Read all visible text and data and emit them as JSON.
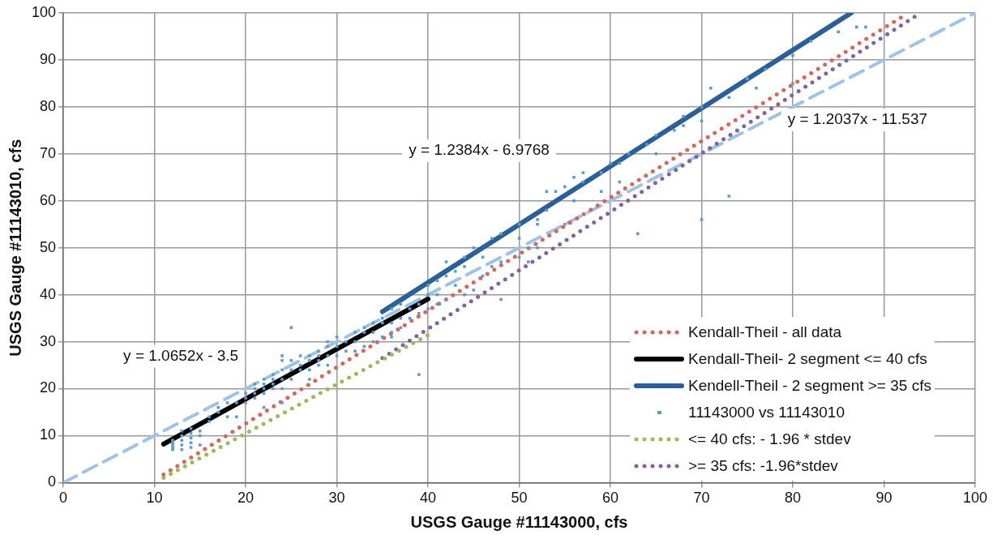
{
  "chart_data": {
    "type": "scatter",
    "xlabel": "USGS Gauge #11143000, cfs",
    "ylabel": "USGS Gauge #11143010, cfs",
    "xlim": [
      0,
      100
    ],
    "ylim": [
      0,
      100
    ],
    "xticks": [
      0,
      10,
      20,
      30,
      40,
      50,
      60,
      70,
      80,
      90,
      100
    ],
    "yticks": [
      0,
      10,
      20,
      30,
      40,
      50,
      60,
      70,
      80,
      90,
      100
    ],
    "grid": true,
    "legend": "bottom right",
    "series": [
      {
        "name": "Kendall-Theil - all data",
        "type": "line",
        "color": "#d9655b",
        "line_style": "dotted",
        "marker": "none",
        "x": [
          11,
          92
        ],
        "values": [
          1.7,
          99.2
        ]
      },
      {
        "name": "Kendall-Theil- 2 segment <= 40 cfs",
        "type": "line",
        "color": "#000000",
        "line_style": "solid",
        "marker": "none",
        "x": [
          11,
          40
        ],
        "values": [
          8.2,
          39.1
        ]
      },
      {
        "name": "Kendell-Theil - 2 segment >= 35 cfs",
        "type": "line",
        "color": "#2a6099",
        "line_style": "solid",
        "marker": "none",
        "x": [
          35,
          86.4
        ],
        "values": [
          36.4,
          100
        ]
      },
      {
        "name": "11143000 vs 11143010",
        "type": "scatter",
        "color": "#5b9bd5",
        "marker": "square",
        "x": [
          12,
          12,
          12,
          12,
          12,
          13,
          13,
          13,
          13,
          13,
          14,
          14,
          14,
          14,
          14,
          15,
          15,
          15,
          16,
          16,
          17,
          17,
          18,
          18,
          19,
          19,
          20,
          20,
          20,
          21,
          21,
          21,
          21,
          22,
          22,
          22,
          22,
          22,
          23,
          23,
          23,
          23,
          24,
          24,
          24,
          24,
          24,
          24,
          25,
          25,
          25,
          25,
          26,
          26,
          26,
          27,
          27,
          27,
          27,
          28,
          28,
          28,
          28,
          29,
          29,
          29,
          29,
          30,
          30,
          30,
          31,
          31,
          32,
          32,
          32,
          33,
          33,
          33,
          34,
          34,
          34,
          35,
          35,
          35,
          36,
          36,
          36,
          36,
          37,
          37,
          37,
          38,
          38,
          39,
          39,
          39,
          40,
          40,
          40,
          41,
          41,
          41,
          42,
          42,
          42,
          43,
          43,
          44,
          44,
          44,
          45,
          45,
          46,
          46,
          47,
          47,
          48,
          48,
          48,
          50,
          50,
          50,
          51,
          51,
          52,
          52,
          52,
          53,
          53,
          54,
          55,
          55,
          56,
          56,
          57,
          57,
          59,
          59,
          60,
          61,
          61,
          62,
          63,
          64,
          65,
          65,
          67,
          68,
          68,
          70,
          70,
          70,
          71,
          73,
          73,
          75,
          76,
          77,
          80,
          80,
          82,
          85,
          87,
          88
        ],
        "values": [
          7,
          7.5,
          8,
          8.5,
          9,
          7,
          8,
          9,
          10,
          11,
          7.5,
          8.5,
          9.5,
          10.5,
          11.5,
          8,
          10,
          11,
          13,
          14,
          15,
          16,
          14,
          17,
          14,
          17,
          17,
          18,
          19,
          18,
          19,
          20,
          21,
          16,
          19,
          20,
          21,
          22,
          20,
          21,
          22,
          23,
          17,
          20,
          22,
          24,
          26,
          27,
          22,
          24,
          26,
          33,
          24,
          25,
          27,
          22,
          24,
          26,
          27,
          25,
          26,
          27,
          28,
          25,
          27,
          29,
          30,
          27,
          29,
          31,
          28,
          30,
          28,
          30,
          32,
          29,
          32,
          33,
          30,
          32,
          34,
          31,
          34,
          35,
          31,
          32,
          34,
          37,
          33,
          35,
          38,
          35,
          37,
          23,
          36,
          38,
          37,
          40,
          42,
          38,
          40,
          43,
          39,
          44,
          47,
          42,
          45,
          40,
          46,
          48,
          41,
          50,
          44,
          48,
          46,
          52,
          39,
          47,
          53,
          48,
          52,
          55,
          47,
          50,
          50,
          55,
          56,
          58,
          62,
          62,
          55,
          63,
          60,
          65,
          64,
          66,
          62,
          66,
          68,
          64,
          68,
          70,
          53,
          72,
          70,
          74,
          75,
          76,
          78,
          56,
          77,
          80,
          84,
          61,
          82,
          86,
          84,
          88,
          85,
          91,
          94,
          96,
          97,
          97
        ]
      },
      {
        "name": "<= 40 cfs: - 1.96 * stdev",
        "type": "line",
        "color": "#9bbb59",
        "line_style": "dotted",
        "marker": "none",
        "x": [
          11,
          40
        ],
        "values": [
          1,
          31.4
        ]
      },
      {
        "name": ">= 35 cfs: -1.96*stdev",
        "type": "line",
        "color": "#8064a2",
        "line_style": "dotted",
        "marker": "none",
        "x": [
          35,
          94
        ],
        "values": [
          26.5,
          100
        ]
      },
      {
        "type": "line",
        "color": "#9dc3e6",
        "line_style": "dashed",
        "marker": "none",
        "x": [
          0,
          100
        ],
        "values": [
          0,
          100
        ]
      }
    ],
    "annotations": [
      "y = 1.0652x - 3.5",
      "y = 1.2384x - 6.9768",
      "y = 1.2037x - 11.537"
    ]
  }
}
